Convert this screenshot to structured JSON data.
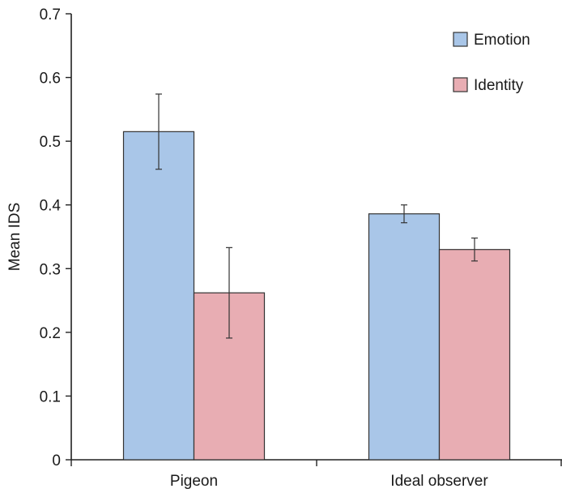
{
  "chart_data": {
    "type": "bar",
    "ylabel": "Mean IDS",
    "xlabel": "",
    "ylim": [
      0,
      0.7
    ],
    "yticks": [
      "0",
      "0.1",
      "0.2",
      "0.3",
      "0.4",
      "0.5",
      "0.6",
      "0.7"
    ],
    "categories": [
      "Pigeon",
      "Ideal observer"
    ],
    "series": [
      {
        "name": "Emotion",
        "color": "#a9c6e8",
        "values": [
          0.515,
          0.386
        ],
        "error": [
          0.059,
          0.014
        ]
      },
      {
        "name": "Identity",
        "color": "#e8adb3",
        "values": [
          0.262,
          0.33
        ],
        "error": [
          0.071,
          0.018
        ]
      }
    ],
    "legend_position": "top-right",
    "grid": false
  }
}
